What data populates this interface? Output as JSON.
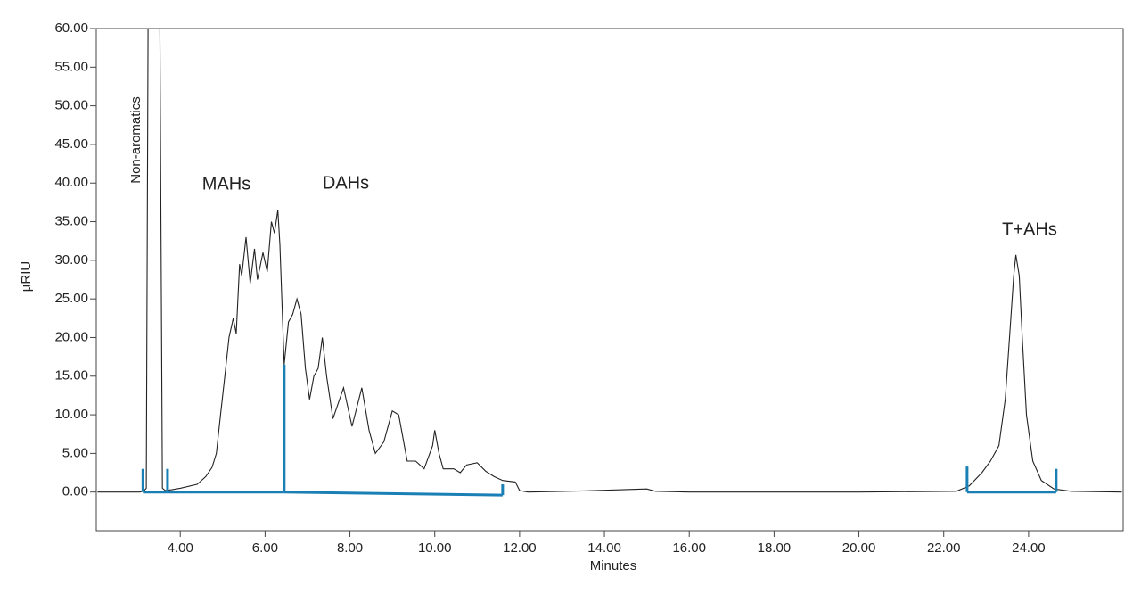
{
  "chart_data": {
    "type": "line",
    "xlabel": "Minutes",
    "ylabel": "µRIU",
    "xlim": [
      2.02,
      26.23
    ],
    "ylim": [
      -5,
      60
    ],
    "xticks": [
      {
        "value": 4,
        "label": "4.00"
      },
      {
        "value": 6,
        "label": "6.00"
      },
      {
        "value": 8,
        "label": "8.00"
      },
      {
        "value": 10,
        "label": "10.00"
      },
      {
        "value": 12,
        "label": "12.00"
      },
      {
        "value": 14,
        "label": "14.00"
      },
      {
        "value": 16,
        "label": "16.00"
      },
      {
        "value": 18,
        "label": "18.00"
      },
      {
        "value": 20,
        "label": "20.00"
      },
      {
        "value": 22,
        "label": "22.00"
      },
      {
        "value": 24,
        "label": "24.00"
      }
    ],
    "yticks": [
      {
        "value": 0,
        "label": "0.00"
      },
      {
        "value": 5,
        "label": "5.00"
      },
      {
        "value": 10,
        "label": "10.00"
      },
      {
        "value": 15,
        "label": "15.00"
      },
      {
        "value": 20,
        "label": "20.00"
      },
      {
        "value": 25,
        "label": "25.00"
      },
      {
        "value": 30,
        "label": "30.00"
      },
      {
        "value": 35,
        "label": "35.00"
      },
      {
        "value": 40,
        "label": "40.00"
      },
      {
        "value": 45,
        "label": "45.00"
      },
      {
        "value": 50,
        "label": "50.00"
      },
      {
        "value": 55,
        "label": "55.00"
      },
      {
        "value": 60,
        "label": "60.00"
      }
    ],
    "series": [
      {
        "color": "#222222",
        "x": [
          2.05,
          3.05,
          3.15,
          3.2,
          3.24,
          3.52,
          3.58,
          3.65,
          3.8,
          4.0,
          4.4,
          4.6,
          4.75,
          4.85,
          4.95,
          5.05,
          5.15,
          5.25,
          5.32,
          5.4,
          5.45,
          5.55,
          5.65,
          5.75,
          5.82,
          5.95,
          6.05,
          6.15,
          6.22,
          6.3,
          6.35,
          6.45,
          6.55,
          6.65,
          6.75,
          6.85,
          6.95,
          7.05,
          7.15,
          7.25,
          7.35,
          7.45,
          7.6,
          7.85,
          8.05,
          8.28,
          8.45,
          8.6,
          8.8,
          9.0,
          9.15,
          9.35,
          9.55,
          9.75,
          9.95,
          10.0,
          10.1,
          10.2,
          10.45,
          10.6,
          10.75,
          11.0,
          11.2,
          11.4,
          11.6,
          11.9,
          12.0,
          12.2,
          13.5,
          15.0,
          15.2,
          16.0,
          20.0,
          22.3,
          22.6,
          22.9,
          23.1,
          23.3,
          23.45,
          23.55,
          23.65,
          23.7,
          23.78,
          23.85,
          23.95,
          24.1,
          24.3,
          24.6,
          25.0,
          26.2
        ],
        "values": [
          0,
          0,
          0.2,
          0.5,
          60,
          60,
          0.5,
          0.2,
          0.3,
          0.5,
          1,
          2,
          3.2,
          5,
          10,
          15,
          20,
          22.5,
          20.5,
          29.5,
          28,
          33,
          27,
          31.5,
          27.5,
          31,
          28.5,
          35,
          33.5,
          36.5,
          32,
          16.5,
          22,
          23,
          25,
          23,
          16,
          12,
          15,
          16,
          20,
          15,
          9.5,
          13.5,
          8.5,
          13.5,
          8,
          5,
          6.5,
          10.5,
          10,
          4,
          4,
          3,
          6,
          8,
          5,
          3,
          3,
          2.5,
          3.5,
          3.8,
          2.7,
          2,
          1.5,
          1.3,
          0.2,
          0,
          0.15,
          0.4,
          0.1,
          0,
          0,
          0.1,
          0.8,
          2.5,
          4,
          6,
          12,
          20,
          28,
          30.7,
          28,
          20,
          10,
          4,
          1.5,
          0.4,
          0.1,
          0
        ]
      }
    ],
    "integration_color": "#1a7fb5",
    "integration_segments": [
      {
        "x0": 3.12,
        "y0": 3,
        "x1": 3.12,
        "y1": 0
      },
      {
        "x0": 3.12,
        "y0": 0,
        "x1": 3.7,
        "y1": 0
      },
      {
        "x0": 3.7,
        "y0": 0,
        "x1": 3.7,
        "y1": 3
      },
      {
        "x0": 3.7,
        "y0": 0,
        "x1": 6.45,
        "y1": 0
      },
      {
        "x0": 6.45,
        "y0": 0,
        "x1": 6.45,
        "y1": 16.5
      },
      {
        "x0": 6.45,
        "y0": 0,
        "x1": 11.6,
        "y1": -0.4
      },
      {
        "x0": 11.6,
        "y0": -0.4,
        "x1": 11.6,
        "y1": 1
      },
      {
        "x0": 22.55,
        "y0": 3.3,
        "x1": 22.55,
        "y1": 0
      },
      {
        "x0": 22.55,
        "y0": 0,
        "x1": 24.65,
        "y1": 0
      },
      {
        "x0": 24.65,
        "y0": 0,
        "x1": 24.65,
        "y1": 3
      }
    ],
    "annotations": [
      "Non-aromatics",
      "MAHs",
      "DAHs",
      "T+AHs"
    ]
  }
}
